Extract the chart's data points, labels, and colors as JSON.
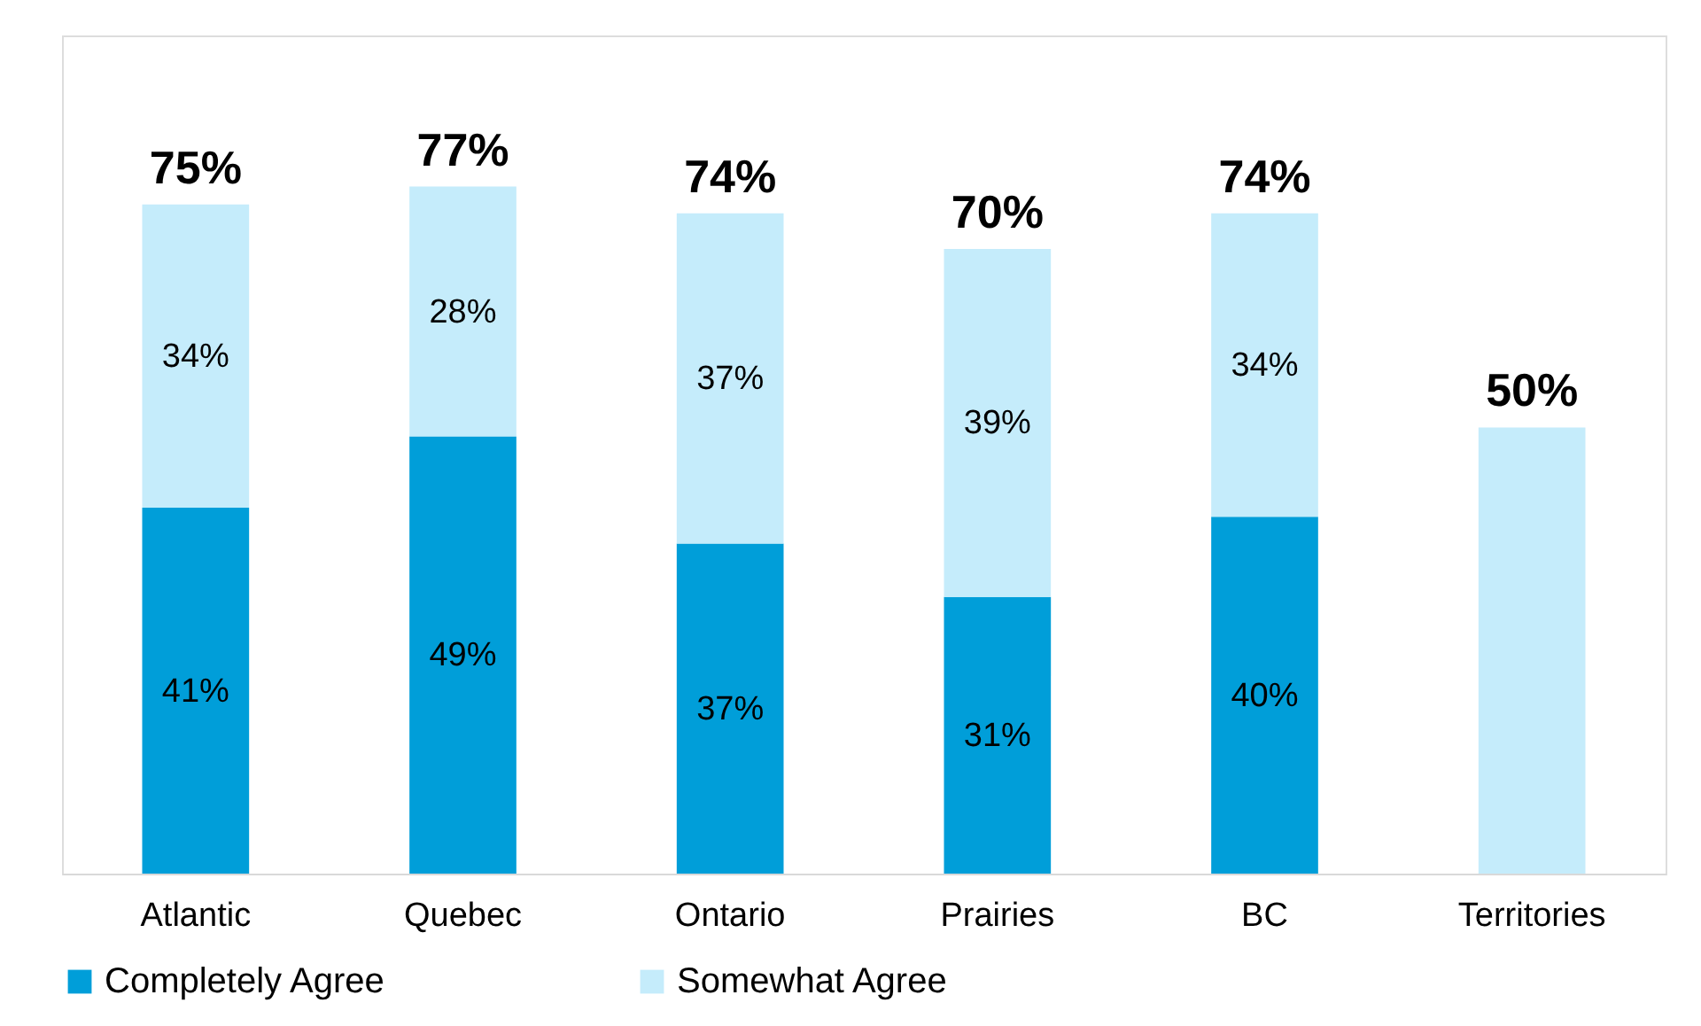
{
  "chart_data": {
    "type": "bar",
    "stacked": true,
    "categories": [
      "Atlantic",
      "Quebec",
      "Ontario",
      "Prairies",
      "BC",
      "Territories"
    ],
    "series": [
      {
        "name": "Completely Agree",
        "color": "#009ed9",
        "values": [
          41,
          49,
          37,
          31,
          40,
          null
        ],
        "value_labels": [
          "41%",
          "49%",
          "37%",
          "31%",
          "40%",
          null
        ]
      },
      {
        "name": "Somewhat Agree",
        "color": "#c5ecfb",
        "values": [
          34,
          28,
          37,
          39,
          34,
          50
        ],
        "value_labels": [
          "34%",
          "28%",
          "37%",
          "39%",
          "34%",
          null
        ]
      }
    ],
    "totals": [
      "75%",
      "77%",
      "74%",
      "70%",
      "74%",
      "50%"
    ],
    "legend": "bottom",
    "grid": false
  }
}
